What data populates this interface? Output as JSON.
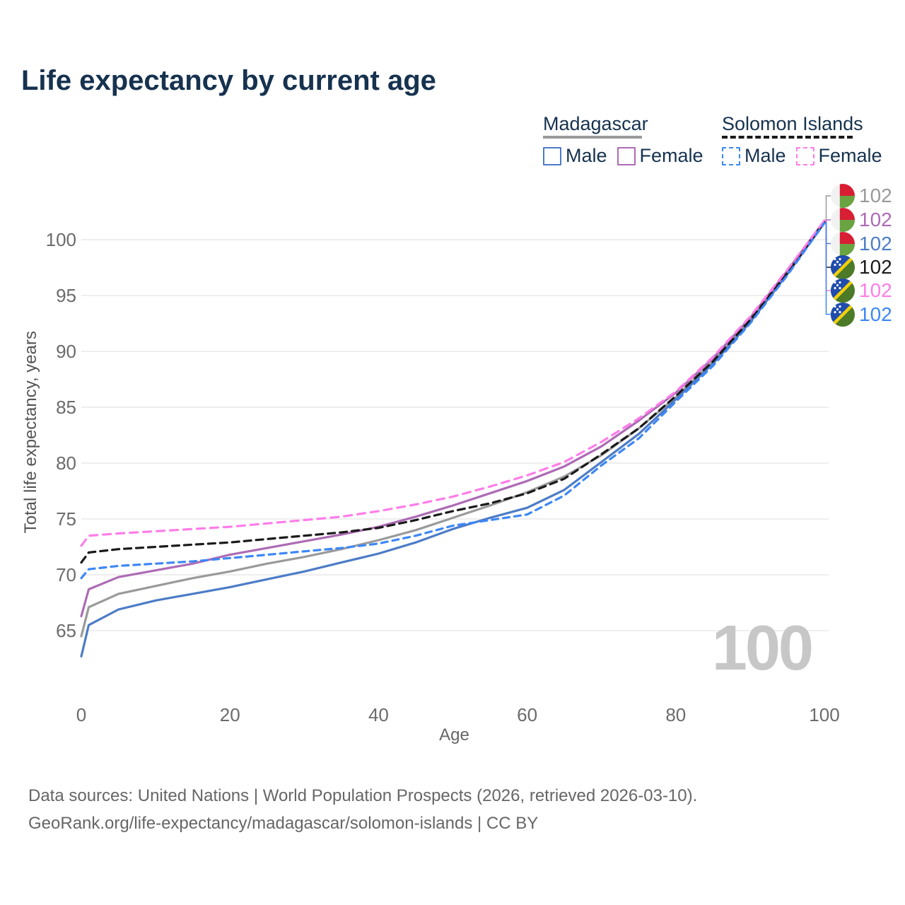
{
  "title": "Life expectancy by current age",
  "legend": {
    "madagascar": {
      "header": "Madagascar",
      "male": "Male",
      "female": "Female"
    },
    "solomon_islands": {
      "header": "Solomon Islands",
      "male": "Male",
      "female": "Female"
    }
  },
  "axes": {
    "x": {
      "label": "Age",
      "ticks": [
        0,
        20,
        40,
        60,
        80,
        100
      ]
    },
    "y": {
      "label": "Total life expectancy, years",
      "ticks": [
        65,
        70,
        75,
        80,
        85,
        90,
        95,
        100
      ]
    }
  },
  "watermark": "100",
  "end_labels": [
    {
      "value": "102",
      "series": "Madagascar Combined",
      "flag": "madagascar",
      "color": "#9a9a9a"
    },
    {
      "value": "102",
      "series": "Madagascar Female",
      "flag": "madagascar",
      "color": "#ad6bb5"
    },
    {
      "value": "102",
      "series": "Madagascar Male",
      "flag": "madagascar",
      "color": "#4d7cc7"
    },
    {
      "value": "102",
      "series": "Solomon Islands Combined",
      "flag": "solomon-islands",
      "color": "#1a1a1a"
    },
    {
      "value": "102",
      "series": "Solomon Islands Female",
      "flag": "solomon-islands",
      "color": "#ff7de9"
    },
    {
      "value": "102",
      "series": "Solomon Islands Male",
      "flag": "solomon-islands",
      "color": "#3d87f5"
    }
  ],
  "footer": {
    "line1": "Data sources: United Nations | World Population Prospects (2026, retrieved 2026-03-10).",
    "line2": "GeoRank.org/life-expectancy/madagascar/solomon-islands | CC BY"
  },
  "chart_data": {
    "type": "line",
    "title": "Life expectancy by current age",
    "xlabel": "Age",
    "ylabel": "Total life expectancy, years",
    "xlim": [
      0,
      100
    ],
    "grid": "horizontal",
    "x": [
      0,
      1,
      5,
      10,
      15,
      20,
      25,
      30,
      35,
      40,
      45,
      50,
      55,
      60,
      65,
      70,
      75,
      80,
      85,
      90,
      95,
      100
    ],
    "series": [
      {
        "name": "Madagascar — Combined",
        "style": "solid",
        "color": "#9a9a9a",
        "values": [
          64.5,
          67.1,
          68.3,
          69.0,
          69.7,
          70.3,
          71.0,
          71.6,
          72.3,
          73.1,
          74.0,
          75.1,
          76.2,
          77.4,
          78.8,
          80.7,
          83.1,
          85.9,
          89.1,
          92.8,
          97.0,
          101.6
        ]
      },
      {
        "name": "Madagascar — Female",
        "style": "solid",
        "color": "#ad6bb5",
        "values": [
          66.3,
          68.7,
          69.8,
          70.4,
          71.0,
          71.8,
          72.4,
          73.0,
          73.6,
          74.3,
          75.2,
          76.2,
          77.3,
          78.4,
          79.7,
          81.5,
          83.8,
          86.3,
          89.4,
          93.0,
          97.2,
          101.7
        ]
      },
      {
        "name": "Madagascar — Male",
        "style": "solid",
        "color": "#4d7cc7",
        "values": [
          62.7,
          65.5,
          66.9,
          67.7,
          68.3,
          68.9,
          69.6,
          70.3,
          71.1,
          71.9,
          72.9,
          74.1,
          75.1,
          76.0,
          77.6,
          80.1,
          82.6,
          85.7,
          88.9,
          92.6,
          96.9,
          101.5
        ]
      },
      {
        "name": "Solomon Islands — Combined",
        "style": "dashed",
        "color": "#1a1a1a",
        "values": [
          71.1,
          72.0,
          72.3,
          72.5,
          72.7,
          72.9,
          73.2,
          73.5,
          73.8,
          74.2,
          74.9,
          75.7,
          76.4,
          77.3,
          78.6,
          80.8,
          83.1,
          86.0,
          89.1,
          92.8,
          97.0,
          101.6
        ]
      },
      {
        "name": "Solomon Islands — Female",
        "style": "dashed",
        "color": "#ff7de9",
        "values": [
          72.6,
          73.5,
          73.7,
          73.9,
          74.1,
          74.3,
          74.6,
          74.9,
          75.2,
          75.7,
          76.3,
          77.0,
          77.9,
          78.9,
          80.1,
          81.9,
          84.0,
          86.4,
          89.5,
          93.1,
          97.3,
          101.7
        ]
      },
      {
        "name": "Solomon Islands — Male",
        "style": "dashed",
        "color": "#3d87f5",
        "values": [
          69.7,
          70.5,
          70.8,
          71.0,
          71.2,
          71.5,
          71.8,
          72.1,
          72.4,
          72.8,
          73.5,
          74.4,
          74.9,
          75.4,
          77.1,
          79.8,
          82.2,
          85.5,
          88.7,
          92.5,
          96.8,
          101.5
        ]
      }
    ]
  }
}
